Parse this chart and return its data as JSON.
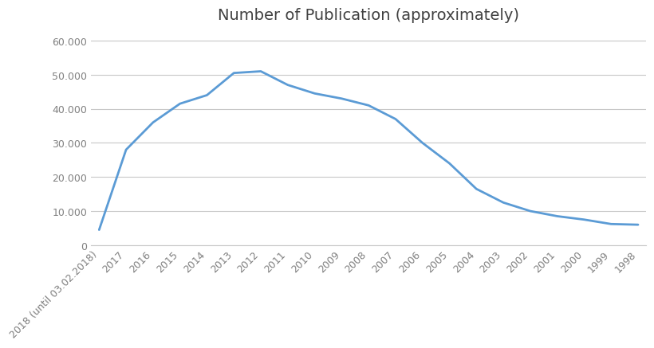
{
  "title": "Number of Publication (approximately)",
  "x_labels": [
    "2018 (until 03.02.2018)",
    "2017",
    "2016",
    "2015",
    "2014",
    "2013",
    "2012",
    "2011",
    "2010",
    "2009",
    "2008",
    "2007",
    "2006",
    "2005",
    "2004",
    "2003",
    "2002",
    "2001",
    "2000",
    "1999",
    "1998"
  ],
  "y_values": [
    4500,
    28000,
    36000,
    41500,
    44000,
    50500,
    51000,
    47000,
    44500,
    43000,
    41000,
    37000,
    30000,
    24000,
    16500,
    12500,
    10000,
    8500,
    7500,
    6200,
    6000
  ],
  "ylim": [
    0,
    63000
  ],
  "yticks": [
    0,
    10000,
    20000,
    30000,
    40000,
    50000,
    60000
  ],
  "ytick_labels": [
    "0",
    "10.000",
    "20.000",
    "30.000",
    "40.000",
    "50.000",
    "60.000"
  ],
  "line_color": "#5b9bd5",
  "background_color": "#ffffff",
  "plot_bg_color": "#ffffff",
  "grid_color": "#c8c8c8",
  "title_fontsize": 14,
  "tick_fontsize": 9,
  "title_color": "#404040",
  "tick_color": "#808080"
}
